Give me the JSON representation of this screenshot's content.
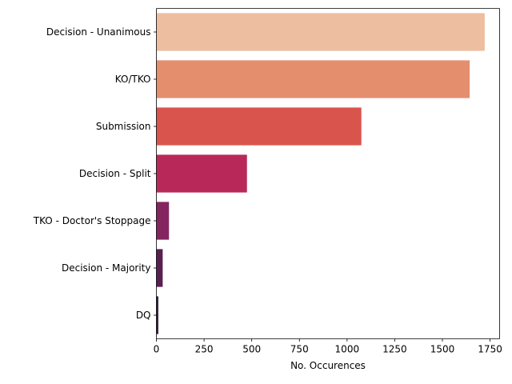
{
  "chart_data": {
    "type": "bar",
    "orientation": "horizontal",
    "categories": [
      "Decision - Unanimous",
      "KO/TKO",
      "Submission",
      "Decision - Split",
      "TKO - Doctor's Stoppage",
      "Decision - Majority",
      "DQ"
    ],
    "values": [
      1722,
      1643,
      1075,
      475,
      66,
      33,
      10
    ],
    "colors": [
      "#edbe9f",
      "#e58e6e",
      "#d9544d",
      "#b8295a",
      "#84255f",
      "#57204f",
      "#2c1735"
    ],
    "title": "",
    "xlabel": "No. Occurences",
    "ylabel": "",
    "xlim": [
      0,
      1800
    ],
    "xticks": [
      0,
      250,
      500,
      750,
      1000,
      1250,
      1500,
      1750
    ],
    "grid": false,
    "legend": "none"
  }
}
